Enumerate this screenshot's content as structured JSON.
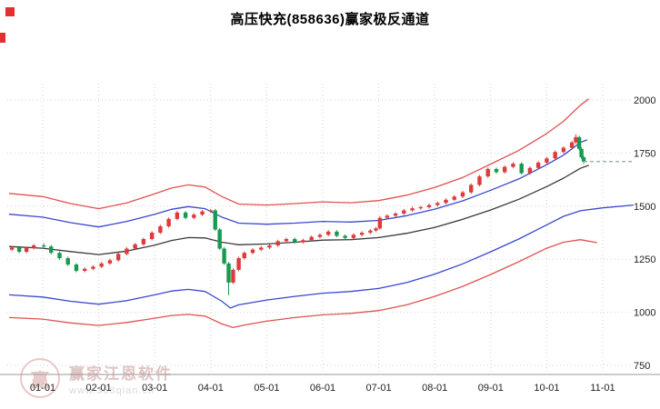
{
  "window": {
    "title": "高压快充(858636)赢家极反通道"
  },
  "watermark": {
    "brand": "赢家江恩软件",
    "url": "www.368qian.cn",
    "logo_char": "赢"
  },
  "chart_data": {
    "type": "candlestick",
    "title": "高压快充(858636)赢家极反通道",
    "symbol": "858636",
    "xlabel": "",
    "ylabel": "",
    "grid": true,
    "legend": "none",
    "ylim": [
      750,
      2000
    ],
    "y_axis": {
      "ticks": [
        2000,
        1750,
        1500,
        1250,
        1000,
        750
      ]
    },
    "x_axis": {
      "labels": [
        "01-01",
        "02-01",
        "03-01",
        "04-01",
        "05-01",
        "06-01",
        "07-01",
        "08-01",
        "09-01",
        "10-01",
        "11-01"
      ]
    },
    "colors": {
      "up": "#dd3b3b",
      "down": "#169a50",
      "band_outer": "#e05252",
      "band_inner": "#3948cf",
      "life_line": "#3a3a3a",
      "target_dash": "#8faa8f",
      "grid": "#cfcfcf",
      "axis": "#9a9a9a",
      "tick_text": "#222222"
    },
    "target_line": {
      "value": 1710,
      "x_start": 9.66,
      "x_end": 10.55
    },
    "bands": {
      "outer_upper": [
        [
          -0.6,
          1560
        ],
        [
          0,
          1545
        ],
        [
          0.5,
          1512
        ],
        [
          1,
          1488
        ],
        [
          1.5,
          1515
        ],
        [
          2,
          1558
        ],
        [
          2.3,
          1585
        ],
        [
          2.6,
          1600
        ],
        [
          2.9,
          1590
        ],
        [
          3.2,
          1545
        ],
        [
          3.5,
          1510
        ],
        [
          4,
          1505
        ],
        [
          4.5,
          1512
        ],
        [
          5,
          1520
        ],
        [
          5.5,
          1516
        ],
        [
          6,
          1526
        ],
        [
          6.5,
          1552
        ],
        [
          7,
          1588
        ],
        [
          7.5,
          1635
        ],
        [
          8,
          1698
        ],
        [
          8.5,
          1762
        ],
        [
          9,
          1842
        ],
        [
          9.3,
          1900
        ],
        [
          9.6,
          1975
        ],
        [
          9.75,
          2005
        ]
      ],
      "inner_upper": [
        [
          -0.6,
          1462
        ],
        [
          0,
          1448
        ],
        [
          0.5,
          1422
        ],
        [
          1,
          1402
        ],
        [
          1.5,
          1428
        ],
        [
          2,
          1462
        ],
        [
          2.3,
          1485
        ],
        [
          2.6,
          1498
        ],
        [
          2.9,
          1488
        ],
        [
          3.2,
          1448
        ],
        [
          3.5,
          1420
        ],
        [
          4,
          1415
        ],
        [
          4.5,
          1420
        ],
        [
          5,
          1428
        ],
        [
          5.5,
          1425
        ],
        [
          6,
          1433
        ],
        [
          6.5,
          1455
        ],
        [
          7,
          1486
        ],
        [
          7.5,
          1525
        ],
        [
          8,
          1575
        ],
        [
          8.5,
          1628
        ],
        [
          9,
          1695
        ],
        [
          9.3,
          1740
        ],
        [
          9.6,
          1800
        ],
        [
          9.72,
          1812
        ]
      ],
      "life": [
        [
          -0.6,
          1310
        ],
        [
          0,
          1302
        ],
        [
          0.5,
          1286
        ],
        [
          1,
          1272
        ],
        [
          1.5,
          1288
        ],
        [
          2,
          1316
        ],
        [
          2.3,
          1338
        ],
        [
          2.6,
          1352
        ],
        [
          2.9,
          1350
        ],
        [
          3.2,
          1330
        ],
        [
          3.5,
          1318
        ],
        [
          4,
          1322
        ],
        [
          4.5,
          1330
        ],
        [
          5,
          1340
        ],
        [
          5.5,
          1342
        ],
        [
          6,
          1352
        ],
        [
          6.5,
          1372
        ],
        [
          7,
          1400
        ],
        [
          7.5,
          1438
        ],
        [
          8,
          1482
        ],
        [
          8.5,
          1532
        ],
        [
          9,
          1592
        ],
        [
          9.3,
          1632
        ],
        [
          9.6,
          1678
        ],
        [
          9.75,
          1692
        ]
      ],
      "inner_lower": [
        [
          -0.6,
          1082
        ],
        [
          0,
          1072
        ],
        [
          0.5,
          1052
        ],
        [
          1,
          1038
        ],
        [
          1.5,
          1055
        ],
        [
          2,
          1082
        ],
        [
          2.3,
          1100
        ],
        [
          2.6,
          1108
        ],
        [
          2.9,
          1098
        ],
        [
          3.2,
          1052
        ],
        [
          3.35,
          1020
        ],
        [
          3.5,
          1035
        ],
        [
          4,
          1058
        ],
        [
          4.5,
          1075
        ],
        [
          5,
          1090
        ],
        [
          5.5,
          1098
        ],
        [
          6,
          1112
        ],
        [
          6.5,
          1140
        ],
        [
          7,
          1180
        ],
        [
          7.5,
          1228
        ],
        [
          8,
          1285
        ],
        [
          8.5,
          1345
        ],
        [
          9,
          1412
        ],
        [
          9.3,
          1452
        ],
        [
          9.6,
          1478
        ],
        [
          10,
          1492
        ],
        [
          10.55,
          1505
        ]
      ],
      "outer_lower": [
        [
          -0.6,
          975
        ],
        [
          0,
          968
        ],
        [
          0.5,
          950
        ],
        [
          1,
          938
        ],
        [
          1.5,
          952
        ],
        [
          2,
          972
        ],
        [
          2.3,
          985
        ],
        [
          2.6,
          990
        ],
        [
          2.9,
          982
        ],
        [
          3.2,
          945
        ],
        [
          3.4,
          928
        ],
        [
          3.6,
          940
        ],
        [
          4,
          958
        ],
        [
          4.5,
          975
        ],
        [
          5,
          988
        ],
        [
          5.5,
          995
        ],
        [
          6,
          1008
        ],
        [
          6.5,
          1035
        ],
        [
          7,
          1075
        ],
        [
          7.5,
          1122
        ],
        [
          8,
          1178
        ],
        [
          8.5,
          1238
        ],
        [
          9,
          1302
        ],
        [
          9.3,
          1330
        ],
        [
          9.6,
          1342
        ],
        [
          9.9,
          1328
        ]
      ]
    },
    "candles": [
      [
        -0.55,
        1295,
        1312,
        1288,
        1305
      ],
      [
        -0.42,
        1305,
        1312,
        1278,
        1285
      ],
      [
        -0.29,
        1285,
        1310,
        1278,
        1303
      ],
      [
        -0.16,
        1303,
        1322,
        1296,
        1315
      ],
      [
        0.02,
        1315,
        1325,
        1303,
        1310
      ],
      [
        0.15,
        1310,
        1317,
        1273,
        1280
      ],
      [
        0.3,
        1280,
        1287,
        1248,
        1255
      ],
      [
        0.45,
        1255,
        1262,
        1218,
        1225
      ],
      [
        0.6,
        1225,
        1232,
        1188,
        1195
      ],
      [
        0.75,
        1195,
        1212,
        1188,
        1205
      ],
      [
        0.9,
        1205,
        1222,
        1198,
        1215
      ],
      [
        1.05,
        1215,
        1237,
        1208,
        1230
      ],
      [
        1.2,
        1230,
        1252,
        1223,
        1245
      ],
      [
        1.35,
        1245,
        1282,
        1238,
        1275
      ],
      [
        1.5,
        1275,
        1307,
        1268,
        1300
      ],
      [
        1.65,
        1300,
        1327,
        1293,
        1320
      ],
      [
        1.8,
        1320,
        1352,
        1313,
        1345
      ],
      [
        1.95,
        1345,
        1382,
        1338,
        1375
      ],
      [
        2.1,
        1375,
        1412,
        1368,
        1405
      ],
      [
        2.25,
        1405,
        1447,
        1398,
        1440
      ],
      [
        2.4,
        1440,
        1477,
        1433,
        1470
      ],
      [
        2.55,
        1470,
        1477,
        1438,
        1445
      ],
      [
        2.7,
        1445,
        1467,
        1438,
        1460
      ],
      [
        2.85,
        1460,
        1482,
        1453,
        1475
      ],
      [
        3.0,
        1475,
        1487,
        1468,
        1480
      ],
      [
        3.08,
        1480,
        1487,
        1383,
        1390
      ],
      [
        3.16,
        1390,
        1397,
        1293,
        1300
      ],
      [
        3.24,
        1300,
        1307,
        1223,
        1230
      ],
      [
        3.32,
        1230,
        1237,
        1080,
        1140
      ],
      [
        3.4,
        1140,
        1207,
        1133,
        1200
      ],
      [
        3.5,
        1200,
        1262,
        1193,
        1255
      ],
      [
        3.6,
        1255,
        1287,
        1248,
        1280
      ],
      [
        3.75,
        1280,
        1302,
        1273,
        1295
      ],
      [
        3.9,
        1295,
        1312,
        1288,
        1305
      ],
      [
        4.05,
        1305,
        1322,
        1298,
        1315
      ],
      [
        4.2,
        1315,
        1342,
        1308,
        1335
      ],
      [
        4.35,
        1335,
        1352,
        1328,
        1345
      ],
      [
        4.5,
        1345,
        1352,
        1323,
        1330
      ],
      [
        4.65,
        1330,
        1347,
        1323,
        1340
      ],
      [
        4.8,
        1340,
        1362,
        1333,
        1355
      ],
      [
        4.95,
        1355,
        1372,
        1348,
        1365
      ],
      [
        5.1,
        1365,
        1387,
        1358,
        1380
      ],
      [
        5.25,
        1380,
        1387,
        1353,
        1360
      ],
      [
        5.4,
        1360,
        1367,
        1343,
        1350
      ],
      [
        5.55,
        1350,
        1372,
        1343,
        1365
      ],
      [
        5.7,
        1365,
        1382,
        1358,
        1375
      ],
      [
        5.85,
        1375,
        1392,
        1368,
        1385
      ],
      [
        5.95,
        1385,
        1402,
        1378,
        1395
      ],
      [
        6.02,
        1395,
        1452,
        1390,
        1445
      ],
      [
        6.15,
        1445,
        1462,
        1438,
        1455
      ],
      [
        6.3,
        1455,
        1472,
        1448,
        1465
      ],
      [
        6.45,
        1465,
        1487,
        1458,
        1480
      ],
      [
        6.6,
        1480,
        1497,
        1473,
        1490
      ],
      [
        6.75,
        1490,
        1502,
        1483,
        1495
      ],
      [
        6.9,
        1495,
        1512,
        1488,
        1505
      ],
      [
        7.05,
        1505,
        1522,
        1498,
        1515
      ],
      [
        7.2,
        1515,
        1537,
        1508,
        1530
      ],
      [
        7.35,
        1530,
        1552,
        1523,
        1545
      ],
      [
        7.5,
        1545,
        1572,
        1538,
        1565
      ],
      [
        7.65,
        1565,
        1607,
        1558,
        1600
      ],
      [
        7.8,
        1600,
        1647,
        1593,
        1640
      ],
      [
        7.95,
        1640,
        1682,
        1633,
        1675
      ],
      [
        8.1,
        1675,
        1682,
        1653,
        1660
      ],
      [
        8.25,
        1660,
        1692,
        1653,
        1685
      ],
      [
        8.4,
        1685,
        1707,
        1678,
        1700
      ],
      [
        8.55,
        1700,
        1707,
        1648,
        1655
      ],
      [
        8.7,
        1655,
        1687,
        1648,
        1680
      ],
      [
        8.85,
        1680,
        1712,
        1673,
        1705
      ],
      [
        9.0,
        1705,
        1732,
        1698,
        1725
      ],
      [
        9.15,
        1725,
        1762,
        1718,
        1755
      ],
      [
        9.3,
        1755,
        1782,
        1748,
        1775
      ],
      [
        9.45,
        1775,
        1807,
        1768,
        1800
      ],
      [
        9.52,
        1800,
        1838,
        1793,
        1825
      ],
      [
        9.58,
        1825,
        1832,
        1763,
        1770
      ],
      [
        9.62,
        1770,
        1777,
        1723,
        1730
      ],
      [
        9.66,
        1730,
        1737,
        1698,
        1710
      ]
    ]
  }
}
